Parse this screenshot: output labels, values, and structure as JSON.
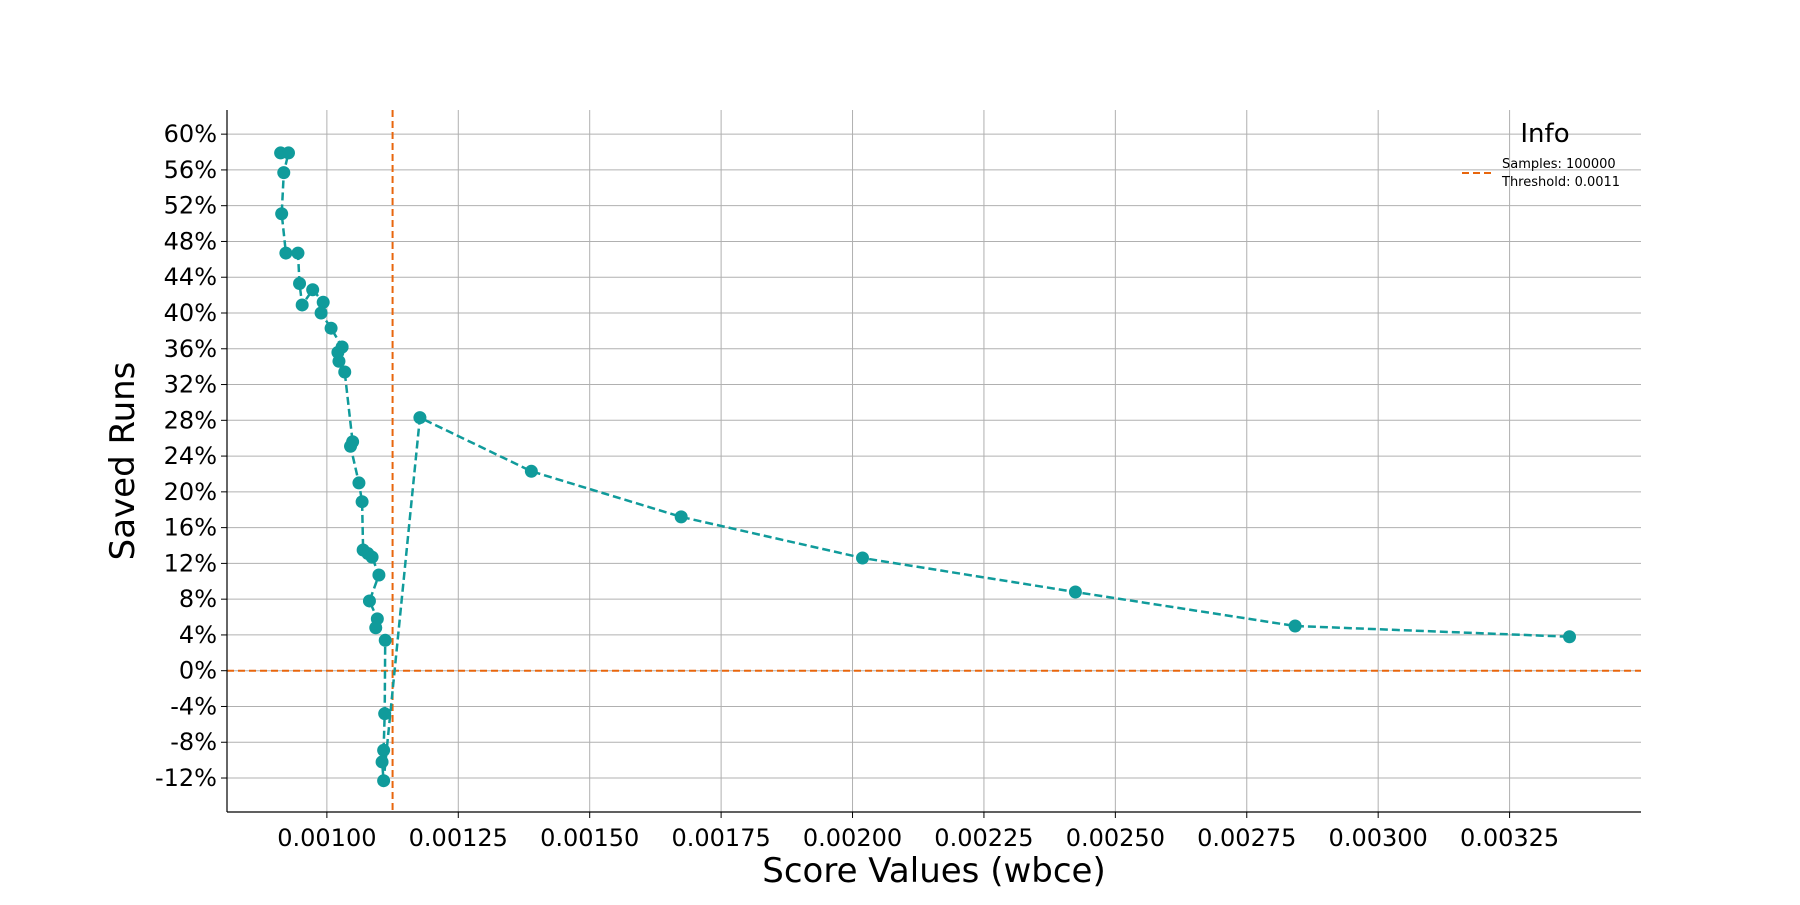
{
  "chart_data": {
    "type": "line",
    "xlabel": "Score Values (wbce)",
    "ylabel": "Saved Runs",
    "xlim": [
      0.00081,
      0.0035
    ],
    "ylim": [
      -0.158,
      0.627
    ],
    "x_ticks": [
      0.001,
      0.00125,
      0.0015,
      0.00175,
      0.002,
      0.00225,
      0.0025,
      0.00275,
      0.003,
      0.00325
    ],
    "x_tick_labels": [
      "0.00100",
      "0.00125",
      "0.00150",
      "0.00175",
      "0.00200",
      "0.00225",
      "0.00250",
      "0.00275",
      "0.00300",
      "0.00325"
    ],
    "y_ticks": [
      -0.12,
      -0.08,
      -0.04,
      0.0,
      0.04,
      0.08,
      0.12,
      0.16,
      0.2,
      0.24,
      0.28,
      0.32,
      0.36,
      0.4,
      0.44,
      0.48,
      0.52,
      0.56,
      0.6
    ],
    "y_tick_labels": [
      "-12%",
      "-8%",
      "-4%",
      "0%",
      "4%",
      "8%",
      "12%",
      "16%",
      "20%",
      "24%",
      "28%",
      "32%",
      "36%",
      "40%",
      "44%",
      "48%",
      "52%",
      "56%",
      "60%"
    ],
    "grid": true,
    "legend": {
      "title": "Info",
      "placement": "top-right",
      "entries": [
        "Samples: 100000",
        "Threshold: 0.0011"
      ]
    },
    "reference_lines": {
      "vertical_x": 0.001125,
      "horizontal_y": 0.0,
      "color": "#e8660d"
    },
    "series": [
      {
        "color": "#109b9b",
        "points": [
          {
            "x": 0.000912,
            "y": 0.579
          },
          {
            "x": 0.000927,
            "y": 0.579
          },
          {
            "x": 0.000918,
            "y": 0.557
          },
          {
            "x": 0.000914,
            "y": 0.511
          },
          {
            "x": 0.000922,
            "y": 0.467
          },
          {
            "x": 0.000945,
            "y": 0.467
          },
          {
            "x": 0.000948,
            "y": 0.433
          },
          {
            "x": 0.000953,
            "y": 0.409
          },
          {
            "x": 0.000973,
            "y": 0.426
          },
          {
            "x": 0.000993,
            "y": 0.412
          },
          {
            "x": 0.000989,
            "y": 0.4
          },
          {
            "x": 0.001008,
            "y": 0.383
          },
          {
            "x": 0.001029,
            "y": 0.362
          },
          {
            "x": 0.001021,
            "y": 0.356
          },
          {
            "x": 0.001023,
            "y": 0.346
          },
          {
            "x": 0.001034,
            "y": 0.334
          },
          {
            "x": 0.001049,
            "y": 0.256
          },
          {
            "x": 0.001045,
            "y": 0.251
          },
          {
            "x": 0.001061,
            "y": 0.21
          },
          {
            "x": 0.001067,
            "y": 0.189
          },
          {
            "x": 0.001069,
            "y": 0.135
          },
          {
            "x": 0.001078,
            "y": 0.131
          },
          {
            "x": 0.001086,
            "y": 0.127
          },
          {
            "x": 0.001099,
            "y": 0.107
          },
          {
            "x": 0.001081,
            "y": 0.078
          },
          {
            "x": 0.001096,
            "y": 0.058
          },
          {
            "x": 0.001093,
            "y": 0.048
          },
          {
            "x": 0.001111,
            "y": 0.034
          },
          {
            "x": 0.00111,
            "y": -0.048
          },
          {
            "x": 0.001108,
            "y": -0.089
          },
          {
            "x": 0.001105,
            "y": -0.102
          },
          {
            "x": 0.001108,
            "y": -0.123
          },
          {
            "x": 0.001177,
            "y": 0.283
          },
          {
            "x": 0.001389,
            "y": 0.223
          },
          {
            "x": 0.001674,
            "y": 0.172
          },
          {
            "x": 0.002019,
            "y": 0.126
          },
          {
            "x": 0.002424,
            "y": 0.088
          },
          {
            "x": 0.002842,
            "y": 0.05
          },
          {
            "x": 0.003364,
            "y": 0.038
          }
        ]
      }
    ]
  }
}
